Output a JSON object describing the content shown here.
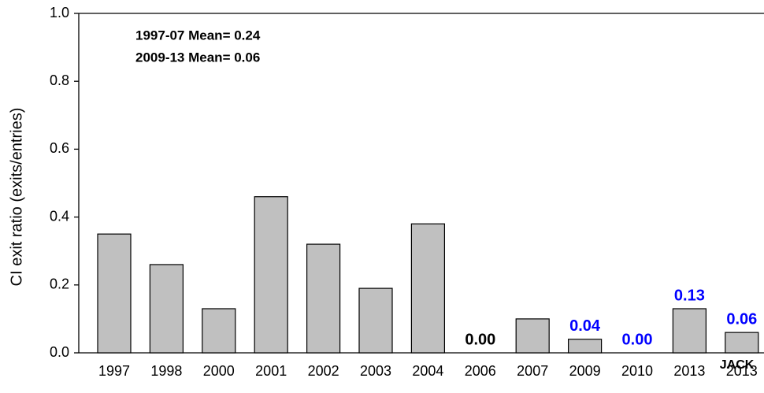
{
  "chart_data": {
    "type": "bar",
    "y_label": "CI exit ratio (exits/entries)",
    "annotations": [
      "1997-07 Mean= 0.24",
      "2009-13 Mean= 0.06",
      "JACK"
    ],
    "categories": [
      "1997",
      "1998",
      "2000",
      "2001",
      "2002",
      "2003",
      "2004",
      "2006",
      "2007",
      "2009",
      "2010",
      "2013",
      "2013"
    ],
    "values": [
      0.35,
      0.26,
      0.13,
      0.46,
      0.32,
      0.19,
      0.38,
      0,
      0.1,
      0.04,
      0,
      0.13,
      0.06
    ],
    "value_labels": [
      null,
      null,
      null,
      null,
      null,
      null,
      null,
      "0.00",
      null,
      "0.04",
      "0.00",
      "0.13",
      "0.06"
    ],
    "value_label_colors": [
      null,
      null,
      null,
      null,
      null,
      null,
      null,
      "#000000",
      null,
      "#0000ff",
      "#0000ff",
      "#0000ff",
      "#0000ff"
    ],
    "color": "#c0c0c0",
    "ylim": [
      0,
      1
    ],
    "yticks": [
      {
        "value": 0,
        "label": "0.0"
      },
      {
        "value": 0.2,
        "label": "0.2"
      },
      {
        "value": 0.4,
        "label": "0.4"
      },
      {
        "value": 0.6,
        "label": "0.6"
      },
      {
        "value": 0.8,
        "label": "0.8"
      },
      {
        "value": 1,
        "label": "1.0"
      }
    ]
  }
}
